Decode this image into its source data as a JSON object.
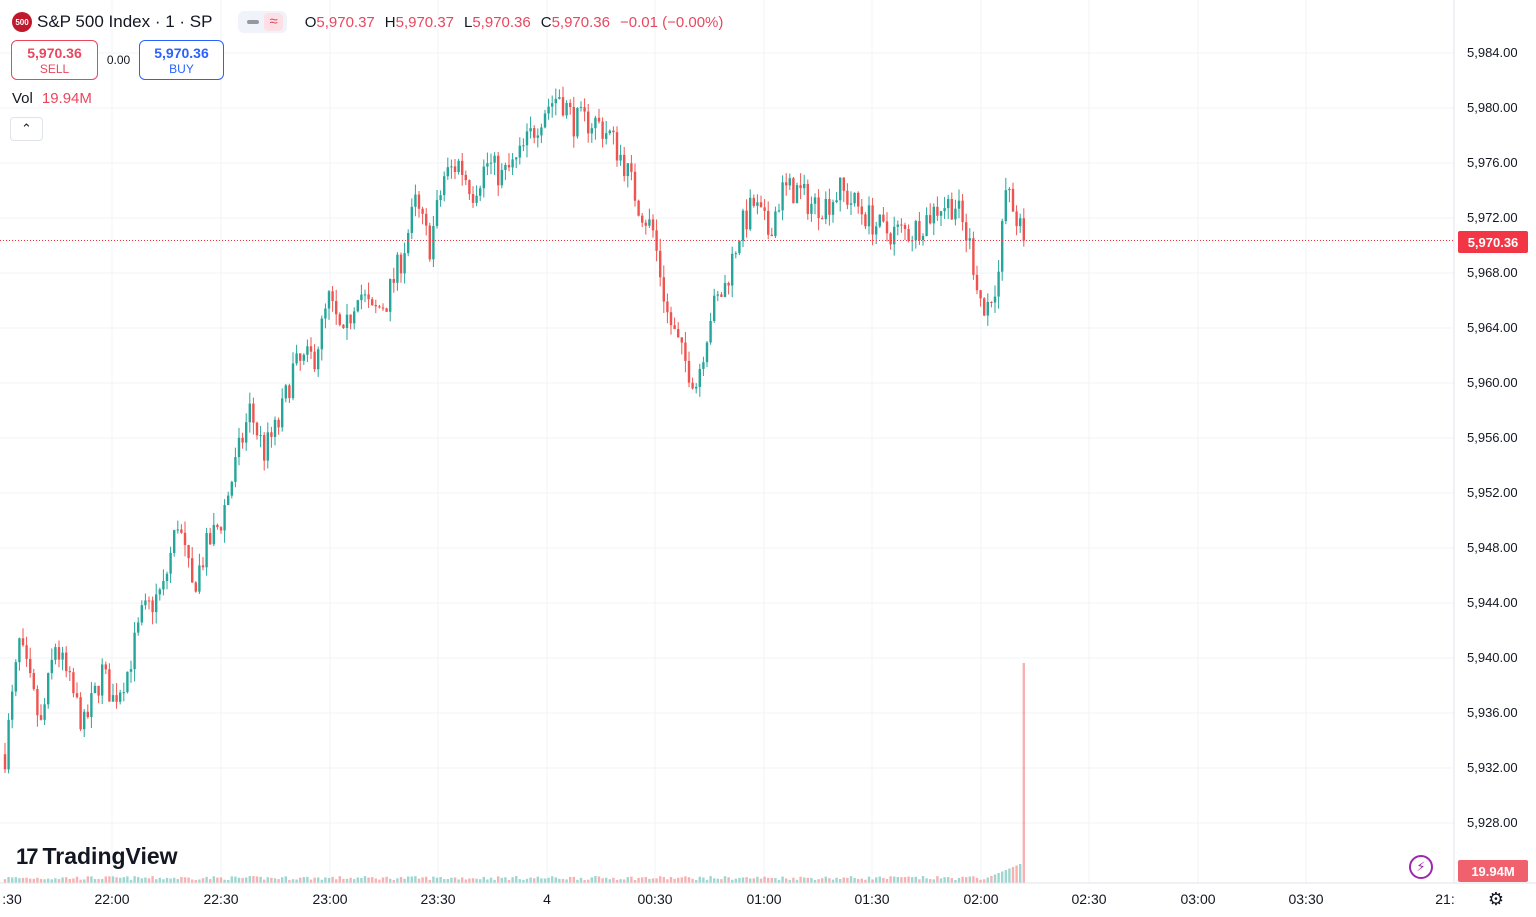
{
  "legend": {
    "symbol_badge": "500",
    "title": "S&P 500 Index · 1 · SP",
    "ohlc": [
      {
        "key": "O",
        "value": "5,970.37"
      },
      {
        "key": "H",
        "value": "5,970.37"
      },
      {
        "key": "L",
        "value": "5,970.36"
      },
      {
        "key": "C",
        "value": "5,970.36"
      }
    ],
    "change": "−0.01 (−0.00%)"
  },
  "trade": {
    "sell_price": "5,970.36",
    "sell_label": "SELL",
    "spread": "0.00",
    "buy_price": "5,970.36",
    "buy_label": "BUY"
  },
  "volume": {
    "label": "Vol",
    "value": "19.94M"
  },
  "price_axis": {
    "labels": [
      "5,984.00",
      "5,980.00",
      "5,976.00",
      "5,972.00",
      "5,968.00",
      "5,964.00",
      "5,960.00",
      "5,956.00",
      "5,952.00",
      "5,948.00",
      "5,944.00",
      "5,940.00",
      "5,936.00",
      "5,932.00",
      "5,928.00"
    ],
    "last_price_tag": "5,970.36",
    "volume_tag": "19.94M"
  },
  "time_axis": {
    "labels": [
      ":30",
      "22:00",
      "22:30",
      "23:00",
      "23:30",
      "4",
      "00:30",
      "01:00",
      "01:30",
      "02:00",
      "02:30",
      "03:00",
      "03:30",
      "21:"
    ]
  },
  "branding": {
    "logo_text": "TradingView",
    "logo_mark": "17"
  },
  "colors": {
    "up": "#26a69a",
    "down": "#ef5350",
    "accent": "#2962ff",
    "last_price": "#f23645"
  },
  "icons": {
    "bolt": "lightning-icon",
    "settings": "settings-gear-icon",
    "collapse": "chevron-up-icon"
  },
  "chart_data": {
    "type": "candlestick",
    "ylim": [
      5926,
      5986
    ],
    "last": 5970.36,
    "keypoints": [
      [
        0,
        5933
      ],
      [
        4,
        5941
      ],
      [
        10,
        5935
      ],
      [
        14,
        5941
      ],
      [
        18,
        5938
      ],
      [
        22,
        5935
      ],
      [
        27,
        5939
      ],
      [
        30,
        5937
      ],
      [
        34,
        5939
      ],
      [
        38,
        5943
      ],
      [
        44,
        5945
      ],
      [
        48,
        5950
      ],
      [
        52,
        5945
      ],
      [
        56,
        5948
      ],
      [
        60,
        5950
      ],
      [
        64,
        5954
      ],
      [
        68,
        5958
      ],
      [
        72,
        5955
      ],
      [
        76,
        5957
      ],
      [
        80,
        5961
      ],
      [
        86,
        5962
      ],
      [
        90,
        5966
      ],
      [
        94,
        5963
      ],
      [
        98,
        5967
      ],
      [
        102,
        5965
      ],
      [
        106,
        5966
      ],
      [
        110,
        5969
      ],
      [
        114,
        5973
      ],
      [
        118,
        5970
      ],
      [
        122,
        5975
      ],
      [
        126,
        5976
      ],
      [
        130,
        5974
      ],
      [
        134,
        5976
      ],
      [
        138,
        5975
      ],
      [
        142,
        5976
      ],
      [
        146,
        5978
      ],
      [
        150,
        5980
      ],
      [
        154,
        5981
      ],
      [
        158,
        5979
      ],
      [
        164,
        5979
      ],
      [
        168,
        5978
      ],
      [
        172,
        5976
      ],
      [
        176,
        5973
      ],
      [
        180,
        5971
      ],
      [
        184,
        5965
      ],
      [
        188,
        5962
      ],
      [
        192,
        5960
      ],
      [
        196,
        5965
      ],
      [
        200,
        5967
      ],
      [
        204,
        5971
      ],
      [
        208,
        5973
      ],
      [
        212,
        5971
      ],
      [
        216,
        5974
      ],
      [
        220,
        5974
      ],
      [
        224,
        5973
      ],
      [
        228,
        5973
      ],
      [
        232,
        5974
      ],
      [
        236,
        5973
      ],
      [
        240,
        5972
      ],
      [
        244,
        5971
      ],
      [
        248,
        5971
      ],
      [
        252,
        5971
      ],
      [
        256,
        5972
      ],
      [
        260,
        5973
      ],
      [
        264,
        5973
      ],
      [
        268,
        5970
      ],
      [
        272,
        5965
      ],
      [
        276,
        5968
      ],
      [
        278,
        5974
      ],
      [
        281,
        5972
      ],
      [
        283,
        5970.36
      ]
    ],
    "volume_spike": "19.94M"
  }
}
